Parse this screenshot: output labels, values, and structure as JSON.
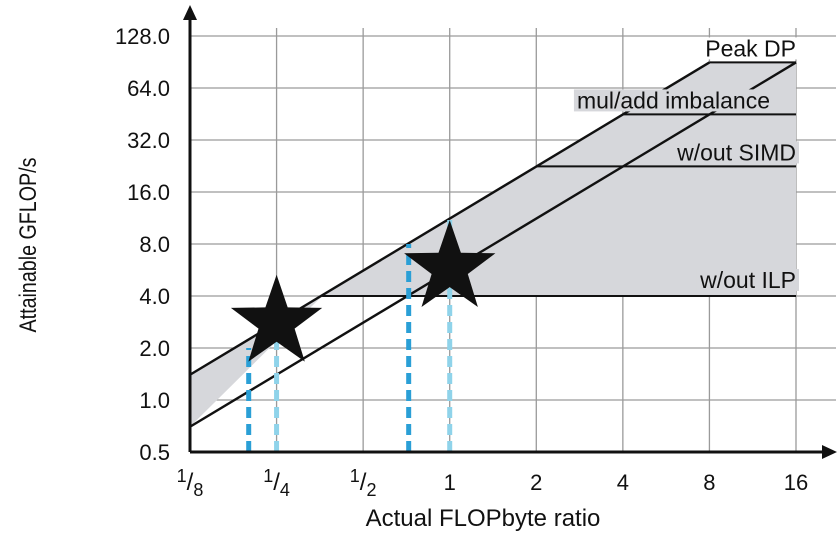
{
  "chart_data": {
    "type": "line",
    "scale": "log2",
    "xlabel": "Actual FLOPbyte ratio",
    "ylabel": "Attainable GFLOP/s",
    "xlim": [
      0.125,
      16
    ],
    "ylim": [
      0.5,
      128
    ],
    "grid": true,
    "x_ticks": [
      {
        "value": 0.125,
        "label": "1/8"
      },
      {
        "value": 0.25,
        "label": "1/4"
      },
      {
        "value": 0.5,
        "label": "1/2"
      },
      {
        "value": 1,
        "label": "1"
      },
      {
        "value": 2,
        "label": "2"
      },
      {
        "value": 4,
        "label": "4"
      },
      {
        "value": 8,
        "label": "8"
      },
      {
        "value": 16,
        "label": "16"
      }
    ],
    "y_ticks": [
      {
        "value": 0.5,
        "label": "0.5"
      },
      {
        "value": 1,
        "label": "1.0"
      },
      {
        "value": 2,
        "label": "2.0"
      },
      {
        "value": 4,
        "label": "4.0"
      },
      {
        "value": 8,
        "label": "8.0"
      },
      {
        "value": 16,
        "label": "16.0"
      },
      {
        "value": 32,
        "label": "32.0"
      },
      {
        "value": 64,
        "label": "64.0"
      },
      {
        "value": 128,
        "label": "128.0"
      }
    ],
    "bandwidth_roofs": [
      {
        "points": [
          [
            0.125,
            1.4
          ],
          [
            8,
            90
          ]
        ]
      },
      {
        "points": [
          [
            0.125,
            0.7
          ],
          [
            16,
            90
          ]
        ]
      }
    ],
    "compute_roofs": [
      {
        "label": "Peak DP",
        "value": 90,
        "x_start": 8,
        "x_end": 16
      },
      {
        "label": "mul/add imbalance",
        "value": 45,
        "x_start": 4,
        "x_end": 16
      },
      {
        "label": "w/out SIMD",
        "value": 22.5,
        "x_start": 2,
        "x_end": 16
      },
      {
        "label": "w/out ILP",
        "value": 4,
        "x_start": 0.36,
        "x_end": 16
      }
    ],
    "kernels": [
      {
        "x": 0.25,
        "y": 2.8,
        "bounds": [
          {
            "x": 0.2,
            "y_top": 2.0
          },
          {
            "x": 0.25,
            "y_top": 2.8
          }
        ]
      },
      {
        "x": 1.0,
        "y": 5.8,
        "bounds": [
          {
            "x": 0.72,
            "y_top": 8.0
          },
          {
            "x": 1.0,
            "y_top": 11.5
          }
        ]
      }
    ],
    "colors": {
      "band_fill": "#d6d7db",
      "line": "#111111",
      "grid": "#9a9a9a",
      "dash_dark": "#2a9fd6",
      "dash_light": "#8fd3ea",
      "star": "#111111"
    }
  }
}
